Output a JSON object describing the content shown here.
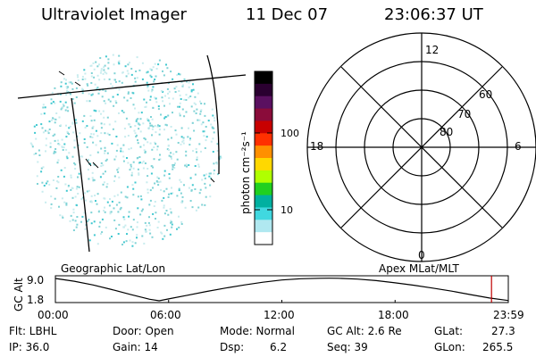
{
  "header": {
    "instrument": "Ultraviolet Imager",
    "date": "11 Dec 07",
    "time": "23:06:37 UT"
  },
  "image_panel": {
    "caption": "Geographic Lat/Lon",
    "dot_color": "#7fd3d6"
  },
  "colorbar": {
    "unit_label": "photon cm⁻²s⁻¹",
    "ticks": [
      "100",
      "10"
    ],
    "colors": [
      "#000000",
      "#2a0030",
      "#5a1060",
      "#8a0c3a",
      "#c80000",
      "#ff3000",
      "#ff9000",
      "#ffd800",
      "#b0ff00",
      "#20d020",
      "#00b0a0",
      "#40d8e0",
      "#b0e8f0",
      "#ffffff"
    ]
  },
  "polar_panel": {
    "caption": "Apex MLat/MLT",
    "mlt_labels": [
      "12",
      "18",
      "6",
      "0"
    ],
    "mlat_labels": [
      "60",
      "70",
      "80"
    ]
  },
  "chart_data": {
    "type": "line",
    "title": "",
    "ylabel": "GC Alt",
    "y_ticks": [
      "9.0",
      "1.8"
    ],
    "ylim": [
      1.8,
      9.0
    ],
    "xlim": [
      0,
      24
    ],
    "x_ticks": [
      "00:00",
      "06:00",
      "12:00",
      "18:00",
      "23:59"
    ],
    "series": [
      {
        "x": [
          0,
          1,
          2,
          3,
          4,
          5,
          5.5,
          6,
          7,
          8,
          9,
          10,
          11,
          12,
          13,
          14,
          14.5,
          15,
          16,
          17,
          18,
          19,
          20,
          21,
          22,
          23,
          23.99
        ],
        "values": [
          9.0,
          8.1,
          6.9,
          5.4,
          3.8,
          2.3,
          1.8,
          2.4,
          3.6,
          4.8,
          5.9,
          6.9,
          7.8,
          8.5,
          8.9,
          9.05,
          9.1,
          9.05,
          8.8,
          8.3,
          7.6,
          6.8,
          5.9,
          4.9,
          3.8,
          2.7,
          1.9
        ]
      }
    ],
    "current_time_marker": 23.11
  },
  "status": {
    "flt": "Flt: LBHL",
    "ip": "IP: 36.0",
    "door": "Door: Open",
    "gain": "Gain: 14",
    "mode": "Mode: Normal",
    "dsp": "Dsp:",
    "dsp_val": "6.2",
    "gc_alt": "GC Alt: 2.6 Re",
    "seq": "Seq: 39",
    "glat": "GLat:",
    "glat_val": "27.3",
    "glon": "GLon:",
    "glon_val": "265.5"
  }
}
